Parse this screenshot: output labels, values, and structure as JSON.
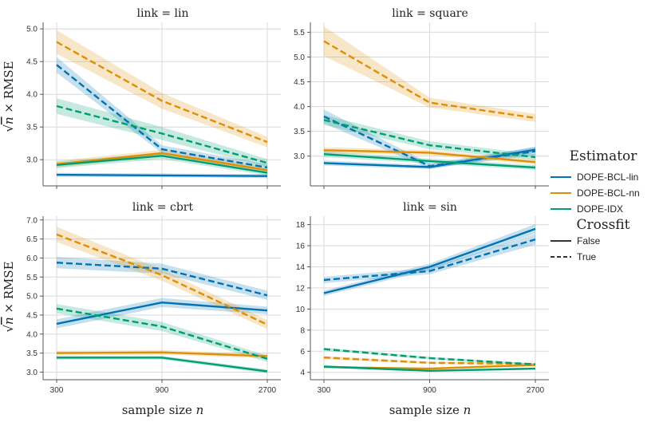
{
  "chart_data": {
    "type": "line",
    "x": [
      300,
      900,
      2700
    ],
    "x_tick_labels": [
      "300",
      "900",
      "2700"
    ],
    "xlabel_text": "sample size ",
    "xlabel_var": "n",
    "ylabel_sqrt": "√",
    "ylabel_var": "n",
    "ylabel_rest": " × RMSE",
    "series_colors": {
      "DOPE-BCL-lin": "#0173b2",
      "DOPE-BCL-nn": "#de8f05",
      "DOPE-IDX": "#029e73"
    },
    "legend": {
      "estimator_title": "Estimator",
      "estimators": [
        "DOPE-BCL-lin",
        "DOPE-BCL-nn",
        "DOPE-IDX"
      ],
      "crossfit_title": "Crossfit",
      "crossfit": [
        "False",
        "True"
      ],
      "placement": "right"
    },
    "panels": [
      {
        "title": "link = lin",
        "ylim": [
          2.6,
          5.1
        ],
        "yticks": [
          3.0,
          3.5,
          4.0,
          4.5,
          5.0
        ],
        "ytick_labels": [
          "3.0",
          "3.5",
          "4.0",
          "4.5",
          "5.0"
        ],
        "series": [
          {
            "estimator": "DOPE-BCL-lin",
            "crossfit": "False",
            "values": [
              2.77,
              2.76,
              2.75
            ],
            "band": [
              0.03,
              0.03,
              0.03
            ]
          },
          {
            "estimator": "DOPE-BCL-lin",
            "crossfit": "True",
            "values": [
              4.45,
              3.16,
              2.88
            ],
            "band": [
              0.12,
              0.06,
              0.05
            ]
          },
          {
            "estimator": "DOPE-BCL-nn",
            "crossfit": "False",
            "values": [
              2.93,
              3.1,
              2.84
            ],
            "band": [
              0.05,
              0.05,
              0.05
            ]
          },
          {
            "estimator": "DOPE-BCL-nn",
            "crossfit": "True",
            "values": [
              4.8,
              3.9,
              3.27
            ],
            "band": [
              0.18,
              0.12,
              0.08
            ]
          },
          {
            "estimator": "DOPE-IDX",
            "crossfit": "False",
            "values": [
              2.92,
              3.06,
              2.8
            ],
            "band": [
              0.05,
              0.05,
              0.04
            ]
          },
          {
            "estimator": "DOPE-IDX",
            "crossfit": "True",
            "values": [
              3.82,
              3.4,
              2.95
            ],
            "band": [
              0.12,
              0.1,
              0.06
            ]
          }
        ]
      },
      {
        "title": "link = square",
        "ylim": [
          2.4,
          5.7
        ],
        "yticks": [
          3.0,
          3.5,
          4.0,
          4.5,
          5.0,
          5.5
        ],
        "ytick_labels": [
          "3.0",
          "3.5",
          "4.0",
          "4.5",
          "5.0",
          "5.5"
        ],
        "series": [
          {
            "estimator": "DOPE-BCL-lin",
            "crossfit": "False",
            "values": [
              2.86,
              2.78,
              3.13
            ],
            "band": [
              0.05,
              0.04,
              0.06
            ]
          },
          {
            "estimator": "DOPE-BCL-lin",
            "crossfit": "True",
            "values": [
              3.8,
              2.8,
              3.1
            ],
            "band": [
              0.14,
              0.05,
              0.08
            ]
          },
          {
            "estimator": "DOPE-BCL-nn",
            "crossfit": "False",
            "values": [
              3.12,
              3.07,
              2.88
            ],
            "band": [
              0.06,
              0.05,
              0.05
            ]
          },
          {
            "estimator": "DOPE-BCL-nn",
            "crossfit": "True",
            "values": [
              5.32,
              4.08,
              3.77
            ],
            "band": [
              0.3,
              0.1,
              0.08
            ]
          },
          {
            "estimator": "DOPE-IDX",
            "crossfit": "False",
            "values": [
              3.04,
              2.9,
              2.77
            ],
            "band": [
              0.06,
              0.05,
              0.05
            ]
          },
          {
            "estimator": "DOPE-IDX",
            "crossfit": "True",
            "values": [
              3.73,
              3.22,
              2.98
            ],
            "band": [
              0.1,
              0.08,
              0.06
            ]
          }
        ]
      },
      {
        "title": "link = cbrt",
        "ylim": [
          2.8,
          7.1
        ],
        "yticks": [
          3.0,
          3.5,
          4.0,
          4.5,
          5.0,
          5.5,
          6.0,
          6.5,
          7.0
        ],
        "ytick_labels": [
          "3.0",
          "3.5",
          "4.0",
          "4.5",
          "5.0",
          "5.5",
          "6.0",
          "6.5",
          "7.0"
        ],
        "series": [
          {
            "estimator": "DOPE-BCL-lin",
            "crossfit": "False",
            "values": [
              4.27,
              4.83,
              4.62
            ],
            "band": [
              0.12,
              0.12,
              0.1
            ]
          },
          {
            "estimator": "DOPE-BCL-lin",
            "crossfit": "True",
            "values": [
              5.88,
              5.72,
              5.02
            ],
            "band": [
              0.15,
              0.13,
              0.12
            ]
          },
          {
            "estimator": "DOPE-BCL-nn",
            "crossfit": "False",
            "values": [
              3.5,
              3.52,
              3.42
            ],
            "band": [
              0.06,
              0.06,
              0.06
            ]
          },
          {
            "estimator": "DOPE-BCL-nn",
            "crossfit": "True",
            "values": [
              6.62,
              5.55,
              4.25
            ],
            "band": [
              0.2,
              0.15,
              0.12
            ]
          },
          {
            "estimator": "DOPE-IDX",
            "crossfit": "False",
            "values": [
              3.38,
              3.38,
              3.02
            ],
            "band": [
              0.05,
              0.05,
              0.05
            ]
          },
          {
            "estimator": "DOPE-IDX",
            "crossfit": "True",
            "values": [
              4.67,
              4.2,
              3.35
            ],
            "band": [
              0.12,
              0.12,
              0.08
            ]
          }
        ]
      },
      {
        "title": "link = sin",
        "ylim": [
          3.3,
          18.8
        ],
        "yticks": [
          4,
          6,
          8,
          10,
          12,
          14,
          16,
          18
        ],
        "ytick_labels": [
          "4",
          "6",
          "8",
          "10",
          "12",
          "14",
          "16",
          "18"
        ],
        "series": [
          {
            "estimator": "DOPE-BCL-lin",
            "crossfit": "False",
            "values": [
              11.5,
              14.0,
              17.6
            ],
            "band": [
              0.25,
              0.3,
              0.45
            ]
          },
          {
            "estimator": "DOPE-BCL-lin",
            "crossfit": "True",
            "values": [
              12.75,
              13.6,
              16.6
            ],
            "band": [
              0.3,
              0.3,
              0.5
            ]
          },
          {
            "estimator": "DOPE-BCL-nn",
            "crossfit": "False",
            "values": [
              4.5,
              4.35,
              4.7
            ],
            "band": [
              0.1,
              0.1,
              0.1
            ]
          },
          {
            "estimator": "DOPE-BCL-nn",
            "crossfit": "True",
            "values": [
              5.4,
              4.9,
              4.8
            ],
            "band": [
              0.15,
              0.12,
              0.1
            ]
          },
          {
            "estimator": "DOPE-IDX",
            "crossfit": "False",
            "values": [
              4.55,
              4.15,
              4.35
            ],
            "band": [
              0.1,
              0.1,
              0.1
            ]
          },
          {
            "estimator": "DOPE-IDX",
            "crossfit": "True",
            "values": [
              6.2,
              5.35,
              4.75
            ],
            "band": [
              0.15,
              0.12,
              0.1
            ]
          }
        ]
      }
    ]
  }
}
